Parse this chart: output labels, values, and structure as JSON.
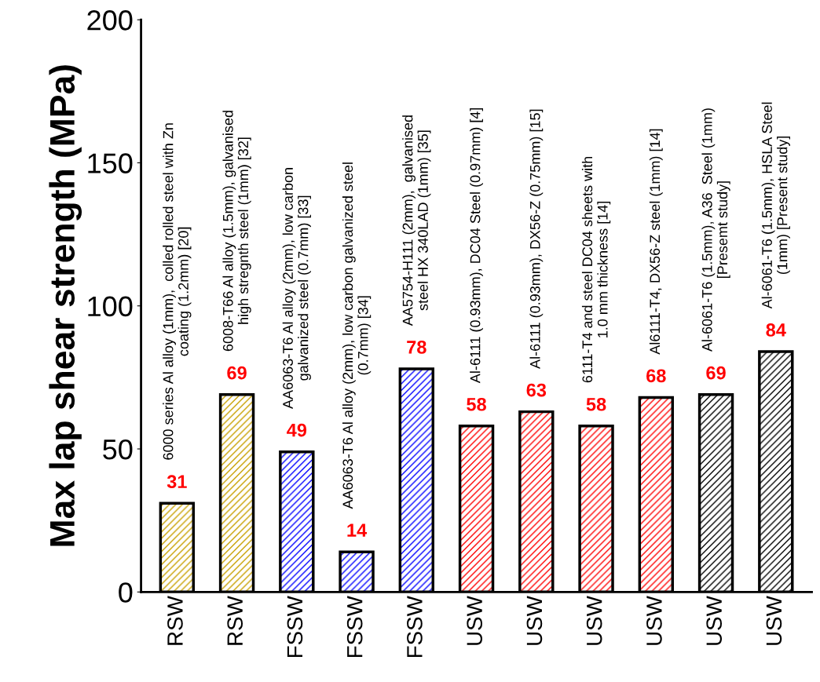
{
  "chart_data": {
    "type": "bar",
    "ylabel": "Max lap shear strength (MPa)",
    "categories": [
      "RSW",
      "RSW",
      "FSSW",
      "FSSW",
      "FSSW",
      "USW",
      "USW",
      "USW",
      "USW",
      "USW",
      "USW"
    ],
    "values": [
      31,
      69,
      49,
      14,
      78,
      58,
      63,
      58,
      68,
      69,
      84
    ],
    "colors": [
      "#c8a000",
      "#c8a000",
      "#0000ff",
      "#0000ff",
      "#0000ff",
      "#ff0000",
      "#ff0000",
      "#ff0000",
      "#ff0000",
      "#000000",
      "#000000"
    ],
    "ylim": [
      0,
      200
    ],
    "yticks": [
      0,
      50,
      100,
      150,
      200
    ],
    "data_labels": true,
    "grid": false,
    "legend": false,
    "annotations": [
      "6000 series Al alloy (1mm),  colled rolled steel with Zn\ncoating (1.2mm) [20]",
      "6008-T66 Al alloy (1.5mm), galvanised\nhigh stregnth steel (1mm) [32]",
      "AA6063-T6 Al alloy (2mm), low carbon\ngalvanized steel (0.7mm) [33]",
      "AA6063-T6 Al alloy (2mm), low carbon galvanized steel\n(0.7mm) [34]",
      "AA5754-H111 (2mm),  galvanised\nsteel HX 340LAD (1mm) [35]",
      "Al-6111 (0.93mm), DC04 Steel (0.97mm) [4]",
      "Al-6111 (0.93mm), DX56-Z (0.75mm) [15]",
      "6111-T4 and steel DC04 sheets with\n1.0 mm thickness [14]",
      "Al6111-T4, DX56-Z steel (1mm) [14]",
      "Al-6061-T6 (1.5mm), A36  Steel (1mm)\n[Presemt study]",
      "Al-6061-T6 (1.5mm), HSLA Steel\n(1mm) [Present study]"
    ]
  }
}
